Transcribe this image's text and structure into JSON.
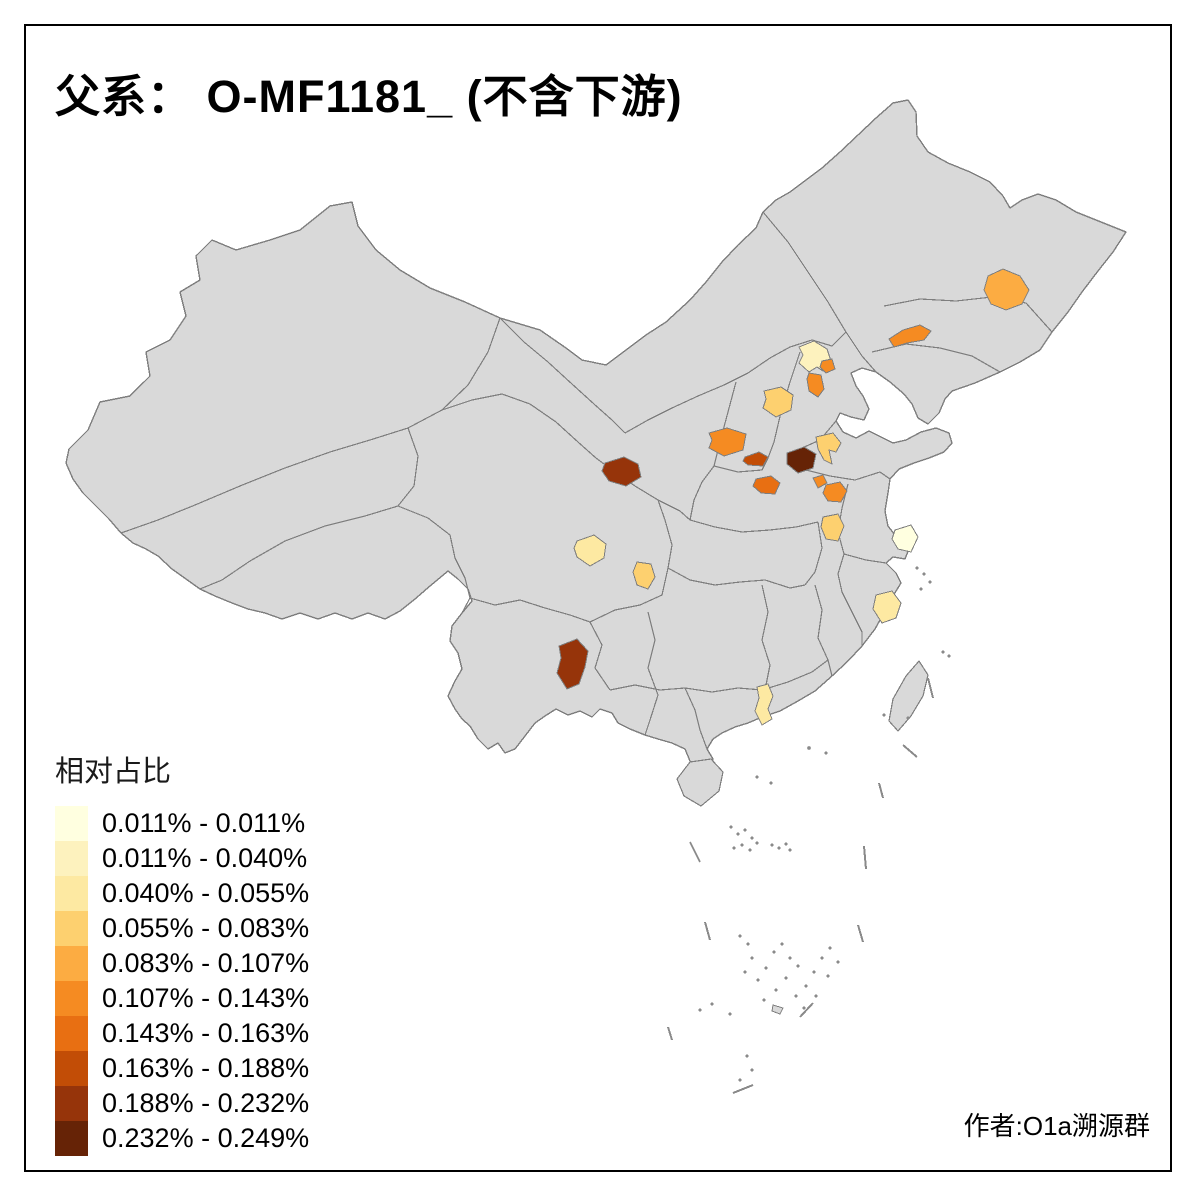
{
  "title": "父系：  O-MF1181_ (不含下游)",
  "attribution": "作者:O1a溯源群",
  "legend": {
    "title": "相对占比",
    "entries": [
      {
        "label": "0.011% - 0.011%",
        "color": "#FFFFE0"
      },
      {
        "label": "0.011% - 0.040%",
        "color": "#FDF2BE"
      },
      {
        "label": "0.040% - 0.055%",
        "color": "#FDE9A2"
      },
      {
        "label": "0.055% - 0.083%",
        "color": "#FDD06F"
      },
      {
        "label": "0.083% - 0.107%",
        "color": "#FCAC42"
      },
      {
        "label": "0.107% - 0.143%",
        "color": "#F58B22"
      },
      {
        "label": "0.143% - 0.163%",
        "color": "#E86F12"
      },
      {
        "label": "0.163% - 0.188%",
        "color": "#C24D06"
      },
      {
        "label": "0.188% - 0.232%",
        "color": "#96340A"
      },
      {
        "label": "0.232% - 0.249%",
        "color": "#662306"
      }
    ]
  },
  "map": {
    "base_fill": "#D9D9D9",
    "border_color": "#7E7E7E",
    "sea_fill": "#FFFFFF",
    "regions": [
      {
        "id": "r1",
        "class_index": 4
      },
      {
        "id": "r2",
        "class_index": 5
      },
      {
        "id": "r3",
        "class_index": 1
      },
      {
        "id": "r4",
        "class_index": 5
      },
      {
        "id": "r5",
        "class_index": 5
      },
      {
        "id": "r6",
        "class_index": 3
      },
      {
        "id": "r7",
        "class_index": 5
      },
      {
        "id": "r8",
        "class_index": 3
      },
      {
        "id": "r9",
        "class_index": 9
      },
      {
        "id": "r10",
        "class_index": 7
      },
      {
        "id": "r11",
        "class_index": 6
      },
      {
        "id": "r12",
        "class_index": 5
      },
      {
        "id": "r13",
        "class_index": 5
      },
      {
        "id": "r14",
        "class_index": 3
      },
      {
        "id": "r15",
        "class_index": 8
      },
      {
        "id": "r16",
        "class_index": 2
      },
      {
        "id": "r17",
        "class_index": 3
      },
      {
        "id": "r18",
        "class_index": 8
      },
      {
        "id": "r19",
        "class_index": 0
      },
      {
        "id": "r20",
        "class_index": 2
      },
      {
        "id": "r21",
        "class_index": 2
      }
    ]
  },
  "chart_data": {
    "type": "choropleth_map",
    "title": "父系：  O-MF1181_ (不含下游)",
    "legend_title": "相对占比",
    "classes": [
      {
        "range": "0.011% - 0.011%",
        "color": "#FFFFE0",
        "regions_shown": 1
      },
      {
        "range": "0.011% - 0.040%",
        "color": "#FDF2BE",
        "regions_shown": 1
      },
      {
        "range": "0.040% - 0.055%",
        "color": "#FDE9A2",
        "regions_shown": 3
      },
      {
        "range": "0.055% - 0.083%",
        "color": "#FDD06F",
        "regions_shown": 4
      },
      {
        "range": "0.083% - 0.107%",
        "color": "#FCAC42",
        "regions_shown": 1
      },
      {
        "range": "0.107% - 0.143%",
        "color": "#F58B22",
        "regions_shown": 6
      },
      {
        "range": "0.143% - 0.163%",
        "color": "#E86F12",
        "regions_shown": 1
      },
      {
        "range": "0.163% - 0.188%",
        "color": "#C24D06",
        "regions_shown": 1
      },
      {
        "range": "0.188% - 0.232%",
        "color": "#96340A",
        "regions_shown": 2
      },
      {
        "range": "0.232% - 0.249%",
        "color": "#662306",
        "regions_shown": 1
      }
    ]
  }
}
